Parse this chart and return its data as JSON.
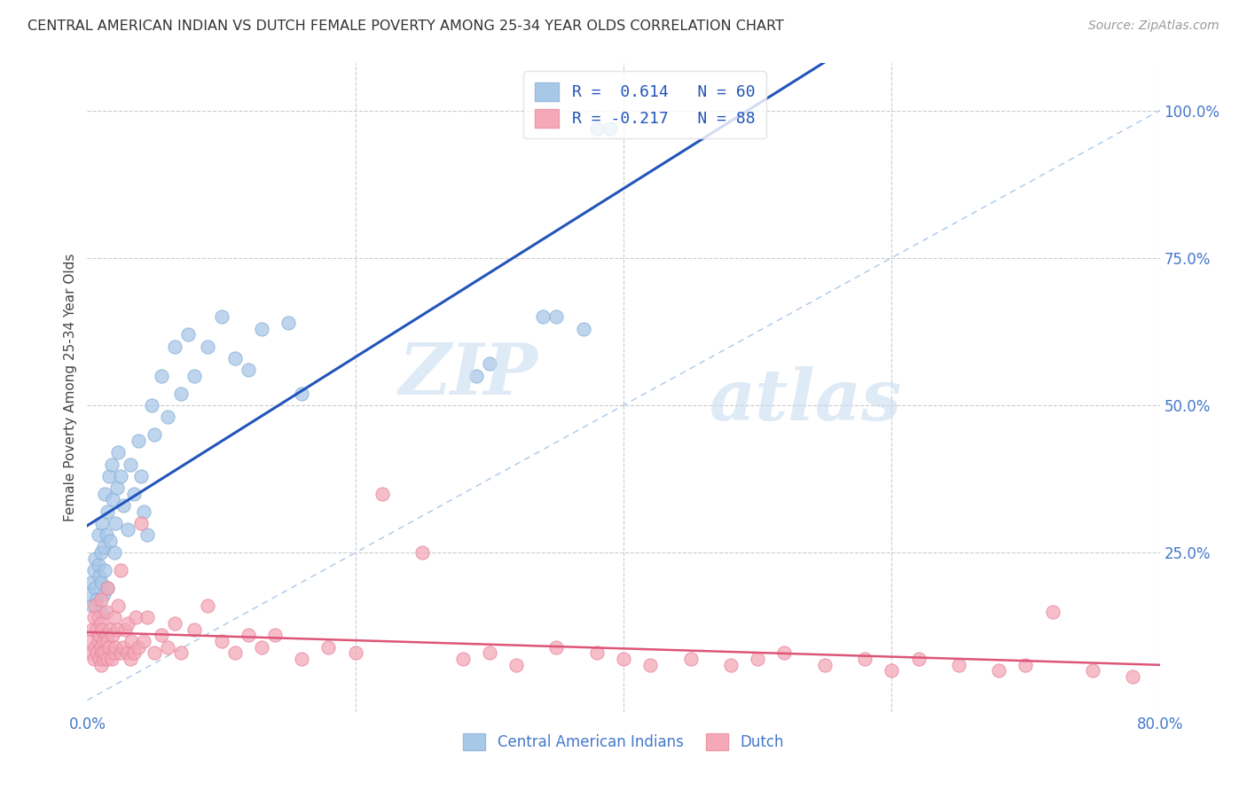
{
  "title": "CENTRAL AMERICAN INDIAN VS DUTCH FEMALE POVERTY AMONG 25-34 YEAR OLDS CORRELATION CHART",
  "source": "Source: ZipAtlas.com",
  "ylabel": "Female Poverty Among 25-34 Year Olds",
  "xlim": [
    0.0,
    0.8
  ],
  "ylim": [
    -0.02,
    1.08
  ],
  "blue_color": "#a8c8e8",
  "pink_color": "#f4a8b8",
  "blue_line_color": "#2255bb",
  "pink_line_color": "#dd5577",
  "diag_line_color": "#aac8e8",
  "legend_blue_label": "R =  0.614   N = 60",
  "legend_pink_label": "R = -0.217   N = 88",
  "watermark_zip": "ZIP",
  "watermark_atlas": "atlas",
  "cat1_label": "Central American Indians",
  "cat2_label": "Dutch",
  "blue_scatter_x": [
    0.002,
    0.003,
    0.004,
    0.005,
    0.006,
    0.006,
    0.007,
    0.008,
    0.008,
    0.009,
    0.01,
    0.01,
    0.01,
    0.011,
    0.012,
    0.012,
    0.013,
    0.013,
    0.014,
    0.015,
    0.015,
    0.016,
    0.017,
    0.018,
    0.019,
    0.02,
    0.021,
    0.022,
    0.023,
    0.025,
    0.027,
    0.03,
    0.032,
    0.035,
    0.038,
    0.04,
    0.042,
    0.045,
    0.048,
    0.05,
    0.055,
    0.06,
    0.065,
    0.07,
    0.075,
    0.08,
    0.09,
    0.1,
    0.11,
    0.12,
    0.13,
    0.15,
    0.16,
    0.29,
    0.3,
    0.34,
    0.35,
    0.37,
    0.38,
    0.39
  ],
  "blue_scatter_y": [
    0.18,
    0.2,
    0.16,
    0.22,
    0.24,
    0.19,
    0.17,
    0.23,
    0.28,
    0.21,
    0.15,
    0.25,
    0.2,
    0.3,
    0.26,
    0.18,
    0.22,
    0.35,
    0.28,
    0.32,
    0.19,
    0.38,
    0.27,
    0.4,
    0.34,
    0.25,
    0.3,
    0.36,
    0.42,
    0.38,
    0.33,
    0.29,
    0.4,
    0.35,
    0.44,
    0.38,
    0.32,
    0.28,
    0.5,
    0.45,
    0.55,
    0.48,
    0.6,
    0.52,
    0.62,
    0.55,
    0.6,
    0.65,
    0.58,
    0.56,
    0.63,
    0.64,
    0.52,
    0.55,
    0.57,
    0.65,
    0.65,
    0.63,
    0.97,
    0.97
  ],
  "pink_scatter_x": [
    0.002,
    0.003,
    0.004,
    0.005,
    0.005,
    0.006,
    0.006,
    0.007,
    0.007,
    0.008,
    0.008,
    0.009,
    0.009,
    0.01,
    0.01,
    0.01,
    0.01,
    0.011,
    0.011,
    0.012,
    0.012,
    0.013,
    0.014,
    0.014,
    0.015,
    0.015,
    0.015,
    0.016,
    0.017,
    0.018,
    0.019,
    0.02,
    0.02,
    0.021,
    0.022,
    0.023,
    0.025,
    0.025,
    0.027,
    0.028,
    0.03,
    0.03,
    0.032,
    0.033,
    0.035,
    0.036,
    0.038,
    0.04,
    0.042,
    0.045,
    0.05,
    0.055,
    0.06,
    0.065,
    0.07,
    0.08,
    0.09,
    0.1,
    0.11,
    0.12,
    0.13,
    0.14,
    0.16,
    0.18,
    0.2,
    0.22,
    0.25,
    0.28,
    0.3,
    0.32,
    0.35,
    0.38,
    0.4,
    0.42,
    0.45,
    0.48,
    0.5,
    0.52,
    0.55,
    0.58,
    0.6,
    0.62,
    0.65,
    0.68,
    0.7,
    0.72,
    0.75,
    0.78
  ],
  "pink_scatter_y": [
    0.1,
    0.08,
    0.12,
    0.07,
    0.14,
    0.09,
    0.16,
    0.08,
    0.12,
    0.1,
    0.14,
    0.07,
    0.11,
    0.06,
    0.09,
    0.13,
    0.17,
    0.08,
    0.12,
    0.07,
    0.1,
    0.08,
    0.11,
    0.15,
    0.07,
    0.1,
    0.19,
    0.09,
    0.12,
    0.07,
    0.11,
    0.08,
    0.14,
    0.09,
    0.12,
    0.16,
    0.08,
    0.22,
    0.09,
    0.12,
    0.08,
    0.13,
    0.07,
    0.1,
    0.08,
    0.14,
    0.09,
    0.3,
    0.1,
    0.14,
    0.08,
    0.11,
    0.09,
    0.13,
    0.08,
    0.12,
    0.16,
    0.1,
    0.08,
    0.11,
    0.09,
    0.11,
    0.07,
    0.09,
    0.08,
    0.35,
    0.25,
    0.07,
    0.08,
    0.06,
    0.09,
    0.08,
    0.07,
    0.06,
    0.07,
    0.06,
    0.07,
    0.08,
    0.06,
    0.07,
    0.05,
    0.07,
    0.06,
    0.05,
    0.06,
    0.15,
    0.05,
    0.04
  ]
}
